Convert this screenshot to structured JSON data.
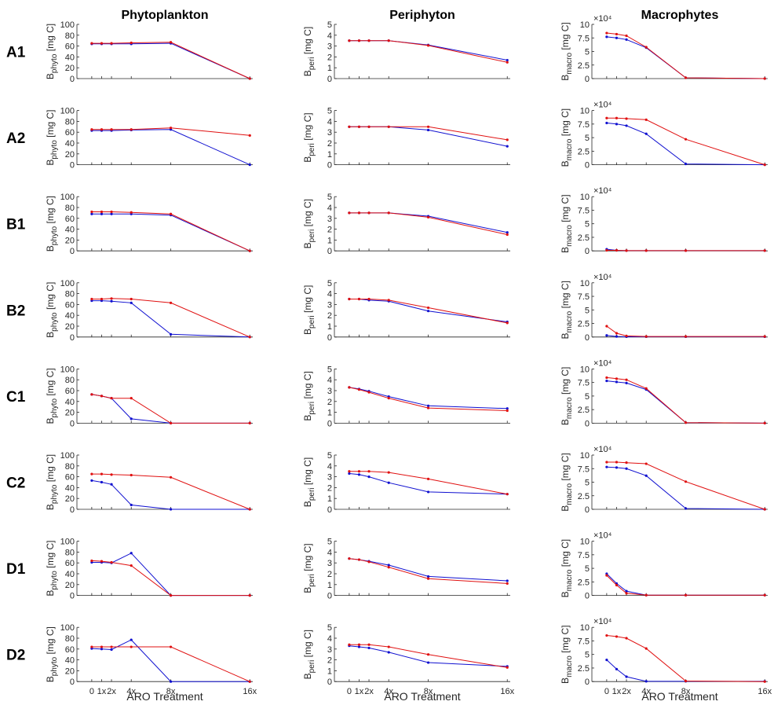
{
  "figure": {
    "column_titles": [
      "Phytoplankton",
      "Periphyton",
      "Macrophytes"
    ],
    "row_labels": [
      "A1",
      "A2",
      "B1",
      "B2",
      "C1",
      "C2",
      "D1",
      "D2"
    ],
    "x_axis_label": "ARO Treatment",
    "colors": {
      "series_blue": "#1010d0",
      "series_red": "#e01010",
      "axis": "#262626"
    }
  },
  "chart_data": [
    {
      "type": "line",
      "panel_group": "Phytoplankton",
      "ylabel_main": "B",
      "ylabel_sub": "phyto",
      "ylabel_unit": " [mg C]",
      "ylim": [
        0,
        100
      ],
      "yticks": [
        0,
        20,
        40,
        60,
        80,
        100
      ],
      "x": [
        0,
        1,
        2,
        4,
        8,
        16
      ],
      "xticks": [
        0,
        1,
        2,
        4,
        8,
        16
      ],
      "xtick_labels": [
        "0",
        "1x",
        "2x",
        "4x",
        "8x",
        "16x"
      ],
      "panels": [
        {
          "row": "A1",
          "series": [
            {
              "color": "blue",
              "values": [
                64,
                64,
                64,
                64,
                65,
                0
              ]
            },
            {
              "color": "red",
              "values": [
                65,
                65,
                65,
                66,
                67,
                0
              ]
            }
          ]
        },
        {
          "row": "A2",
          "series": [
            {
              "color": "blue",
              "values": [
                63,
                63,
                63,
                64,
                65,
                0
              ]
            },
            {
              "color": "red",
              "values": [
                65,
                65,
                65,
                65,
                68,
                54
              ]
            }
          ]
        },
        {
          "row": "B1",
          "series": [
            {
              "color": "blue",
              "values": [
                68,
                68,
                68,
                68,
                66,
                0
              ]
            },
            {
              "color": "red",
              "values": [
                72,
                72,
                72,
                71,
                68,
                0
              ]
            }
          ]
        },
        {
          "row": "B2",
          "series": [
            {
              "color": "blue",
              "values": [
                67,
                67,
                66,
                63,
                5,
                0
              ]
            },
            {
              "color": "red",
              "values": [
                70,
                70,
                71,
                70,
                63,
                0
              ]
            }
          ]
        },
        {
          "row": "C1",
          "series": [
            {
              "color": "blue",
              "values": [
                53,
                50,
                46,
                8,
                0,
                0
              ]
            },
            {
              "color": "red",
              "values": [
                53,
                50,
                46,
                46,
                0,
                0
              ]
            }
          ]
        },
        {
          "row": "C2",
          "series": [
            {
              "color": "blue",
              "values": [
                53,
                50,
                46,
                8,
                0,
                0
              ]
            },
            {
              "color": "red",
              "values": [
                65,
                65,
                64,
                63,
                59,
                0
              ]
            }
          ]
        },
        {
          "row": "D1",
          "series": [
            {
              "color": "blue",
              "values": [
                61,
                61,
                60,
                78,
                0,
                0
              ]
            },
            {
              "color": "red",
              "values": [
                64,
                63,
                61,
                55,
                0,
                0
              ]
            }
          ]
        },
        {
          "row": "D2",
          "series": [
            {
              "color": "blue",
              "values": [
                61,
                60,
                59,
                77,
                0,
                0
              ]
            },
            {
              "color": "red",
              "values": [
                64,
                64,
                64,
                64,
                64,
                0
              ]
            }
          ]
        }
      ]
    },
    {
      "type": "line",
      "panel_group": "Periphyton",
      "ylabel_main": "B",
      "ylabel_sub": "peri",
      "ylabel_unit": " [mg C]",
      "ylim": [
        0,
        5
      ],
      "yticks": [
        0,
        1,
        2,
        3,
        4,
        5
      ],
      "x": [
        0,
        1,
        2,
        4,
        8,
        16
      ],
      "xticks": [
        0,
        1,
        2,
        4,
        8,
        16
      ],
      "xtick_labels": [
        "0",
        "1x",
        "2x",
        "4x",
        "8x",
        "16x"
      ],
      "panels": [
        {
          "row": "A1",
          "series": [
            {
              "color": "blue",
              "values": [
                3.5,
                3.5,
                3.5,
                3.5,
                3.1,
                1.7
              ]
            },
            {
              "color": "red",
              "values": [
                3.5,
                3.5,
                3.5,
                3.5,
                3.05,
                1.5
              ]
            }
          ]
        },
        {
          "row": "A2",
          "series": [
            {
              "color": "blue",
              "values": [
                3.5,
                3.5,
                3.5,
                3.5,
                3.2,
                1.7
              ]
            },
            {
              "color": "red",
              "values": [
                3.5,
                3.5,
                3.5,
                3.5,
                3.5,
                2.3
              ]
            }
          ]
        },
        {
          "row": "B1",
          "series": [
            {
              "color": "blue",
              "values": [
                3.5,
                3.5,
                3.5,
                3.5,
                3.2,
                1.7
              ]
            },
            {
              "color": "red",
              "values": [
                3.5,
                3.5,
                3.5,
                3.5,
                3.1,
                1.5
              ]
            }
          ]
        },
        {
          "row": "B2",
          "series": [
            {
              "color": "blue",
              "values": [
                3.5,
                3.5,
                3.4,
                3.3,
                2.4,
                1.4
              ]
            },
            {
              "color": "red",
              "values": [
                3.5,
                3.5,
                3.5,
                3.4,
                2.7,
                1.3
              ]
            }
          ]
        },
        {
          "row": "C1",
          "series": [
            {
              "color": "blue",
              "values": [
                3.3,
                3.15,
                2.95,
                2.45,
                1.6,
                1.35
              ]
            },
            {
              "color": "red",
              "values": [
                3.3,
                3.1,
                2.85,
                2.3,
                1.4,
                1.15
              ]
            }
          ]
        },
        {
          "row": "C2",
          "series": [
            {
              "color": "blue",
              "values": [
                3.3,
                3.2,
                3.0,
                2.45,
                1.6,
                1.4
              ]
            },
            {
              "color": "red",
              "values": [
                3.5,
                3.5,
                3.5,
                3.4,
                2.8,
                1.4
              ]
            }
          ]
        },
        {
          "row": "D1",
          "series": [
            {
              "color": "blue",
              "values": [
                3.4,
                3.3,
                3.15,
                2.8,
                1.75,
                1.35
              ]
            },
            {
              "color": "red",
              "values": [
                3.4,
                3.3,
                3.1,
                2.6,
                1.55,
                1.1
              ]
            }
          ]
        },
        {
          "row": "D2",
          "series": [
            {
              "color": "blue",
              "values": [
                3.3,
                3.2,
                3.1,
                2.7,
                1.75,
                1.4
              ]
            },
            {
              "color": "red",
              "values": [
                3.4,
                3.4,
                3.4,
                3.2,
                2.5,
                1.3
              ]
            }
          ]
        }
      ]
    },
    {
      "type": "line",
      "panel_group": "Macrophytes",
      "ylabel_main": "B",
      "ylabel_sub": "macro",
      "ylabel_unit": " [mg C]",
      "ylim": [
        0,
        100000
      ],
      "yticks": [
        0,
        25000,
        50000,
        75000,
        100000
      ],
      "ytick_labels": [
        "0",
        "2.5",
        "5",
        "7.5",
        "10"
      ],
      "yexponent": "×10⁴",
      "x": [
        0,
        1,
        2,
        4,
        8,
        16
      ],
      "xticks": [
        0,
        1,
        2,
        4,
        8,
        16
      ],
      "xtick_labels": [
        "0",
        "1x",
        "2x",
        "4x",
        "8x",
        "16x"
      ],
      "panels": [
        {
          "row": "A1",
          "series": [
            {
              "color": "blue",
              "values": [
                77000,
                75000,
                72000,
                57000,
                1500,
                0
              ]
            },
            {
              "color": "red",
              "values": [
                84000,
                82000,
                79000,
                58000,
                1500,
                0
              ]
            }
          ]
        },
        {
          "row": "A2",
          "series": [
            {
              "color": "blue",
              "values": [
                77000,
                75000,
                72000,
                57000,
                1500,
                0
              ]
            },
            {
              "color": "red",
              "values": [
                86000,
                86000,
                85000,
                83000,
                47000,
                0
              ]
            }
          ]
        },
        {
          "row": "B1",
          "series": [
            {
              "color": "blue",
              "values": [
                3000,
                1000,
                500,
                500,
                500,
                500
              ]
            },
            {
              "color": "red",
              "values": [
                1000,
                1000,
                500,
                500,
                500,
                500
              ]
            }
          ]
        },
        {
          "row": "B2",
          "series": [
            {
              "color": "blue",
              "values": [
                3000,
                1000,
                500,
                500,
                500,
                500
              ]
            },
            {
              "color": "red",
              "values": [
                20000,
                7000,
                2000,
                1000,
                1000,
                1000
              ]
            }
          ]
        },
        {
          "row": "C1",
          "series": [
            {
              "color": "blue",
              "values": [
                78000,
                76000,
                74000,
                62000,
                1000,
                0
              ]
            },
            {
              "color": "red",
              "values": [
                84000,
                82000,
                80000,
                64000,
                1000,
                0
              ]
            }
          ]
        },
        {
          "row": "C2",
          "series": [
            {
              "color": "blue",
              "values": [
                78000,
                77000,
                75000,
                62000,
                1500,
                0
              ]
            },
            {
              "color": "red",
              "values": [
                87000,
                87000,
                86000,
                84000,
                51000,
                0
              ]
            }
          ]
        },
        {
          "row": "D1",
          "series": [
            {
              "color": "blue",
              "values": [
                40000,
                22000,
                8000,
                500,
                500,
                500
              ]
            },
            {
              "color": "red",
              "values": [
                37000,
                19000,
                4000,
                500,
                500,
                500
              ]
            }
          ]
        },
        {
          "row": "D2",
          "series": [
            {
              "color": "blue",
              "values": [
                40000,
                23000,
                9000,
                500,
                500,
                500
              ]
            },
            {
              "color": "red",
              "values": [
                85000,
                83000,
                80000,
                61000,
                1000,
                0
              ]
            }
          ]
        }
      ]
    }
  ]
}
